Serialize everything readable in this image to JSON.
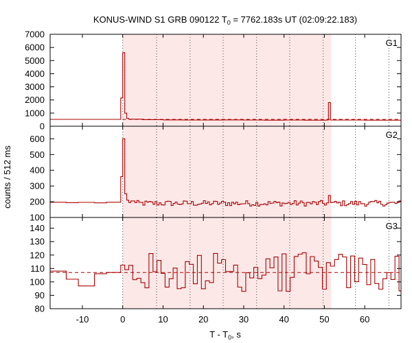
{
  "chart_data": {
    "type": "step-histogram",
    "title": "KONUS-WIND S1 GRB 090122 T",
    "title_sub": "0",
    "title_rest": " = 7762.183s UT (02:09:22.183)",
    "xlabel_main": "T - T",
    "xlabel_sub": "0",
    "xlabel_rest": ", s",
    "ylabel": "counts / 512 ms",
    "xlim": [
      -18,
      69
    ],
    "x_ticks": [
      -10,
      0,
      10,
      20,
      30,
      40,
      50,
      60
    ],
    "x_tick_labels": [
      "-10",
      "0",
      "10",
      "20",
      "30",
      "40",
      "50",
      "60"
    ],
    "shaded_interval": [
      0,
      51.7
    ],
    "shade_color": "#fde8e8",
    "line_color": "#aa0000",
    "dashed_color": "#aa0000",
    "dotted_lines_x": [
      0,
      8.4,
      16.7,
      24.9,
      33.2,
      41.4,
      49.7,
      57.7,
      66.0
    ],
    "panels": [
      {
        "name": "G1",
        "ylim": [
          0,
          7000
        ],
        "y_ticks": [
          0,
          1000,
          2000,
          3000,
          4000,
          5000,
          6000,
          7000
        ],
        "y_tick_labels": [
          "0",
          "1000",
          "2000",
          "3000",
          "4000",
          "5000",
          "6000",
          "7000"
        ],
        "background_level": 520,
        "pre_trigger": {
          "x0": -18,
          "x1": -0.5,
          "value": 520
        },
        "bins": [
          {
            "x": -0.5,
            "v": 2150
          },
          {
            "x": 0.0,
            "v": 5600
          },
          {
            "x": 0.5,
            "v": 1000
          },
          {
            "x": 1.0,
            "v": 600
          },
          {
            "x": 1.5,
            "v": 540
          },
          {
            "x": 5.0,
            "v": 500
          },
          {
            "x": 10.0,
            "v": 480
          },
          {
            "x": 15.0,
            "v": 470
          },
          {
            "x": 20.0,
            "v": 475
          },
          {
            "x": 25.0,
            "v": 480
          },
          {
            "x": 30.0,
            "v": 470
          },
          {
            "x": 35.0,
            "v": 460
          },
          {
            "x": 40.0,
            "v": 470
          },
          {
            "x": 45.0,
            "v": 460
          },
          {
            "x": 50.5,
            "v": 470
          },
          {
            "x": 51.0,
            "v": 1800
          },
          {
            "x": 51.5,
            "v": 470
          },
          {
            "x": 55.0,
            "v": 470
          },
          {
            "x": 60.0,
            "v": 460
          },
          {
            "x": 65.0,
            "v": 460
          }
        ]
      },
      {
        "name": "G2",
        "ylim": [
          100,
          680
        ],
        "y_ticks": [
          100,
          200,
          300,
          400,
          500,
          600
        ],
        "y_tick_labels": [
          "100",
          "200",
          "300",
          "400",
          "500",
          "600"
        ],
        "pre_trigger_series": [
          {
            "x0": -18,
            "x1": -14,
            "v": 197
          },
          {
            "x0": -14,
            "x1": -11,
            "v": 194
          },
          {
            "x0": -11,
            "x1": -7,
            "v": 196
          },
          {
            "x0": -7,
            "x1": -4,
            "v": 193
          },
          {
            "x0": -4,
            "x1": -0.5,
            "v": 197
          }
        ],
        "bins": [
          {
            "x": -0.5,
            "v": 360
          },
          {
            "x": 0.0,
            "v": 600
          },
          {
            "x": 0.5,
            "v": 250
          },
          {
            "x": 1.0,
            "v": 210
          },
          {
            "x": 1.5,
            "v": 195
          },
          {
            "x": 51.0,
            "v": 240
          },
          {
            "x": 51.5,
            "v": 195
          }
        ],
        "noise_mean": 190,
        "noise_amp": 18,
        "noise_to": 69
      },
      {
        "name": "G3",
        "ylim": [
          80,
          148
        ],
        "y_ticks": [
          80,
          90,
          100,
          110,
          120,
          130,
          140
        ],
        "y_tick_labels": [
          "80",
          "90",
          "100",
          "110",
          "120",
          "130",
          "140"
        ],
        "dashed_level": 107,
        "pre_trigger_series": [
          {
            "x0": -18,
            "x1": -14,
            "v": 108
          },
          {
            "x0": -14,
            "x1": -11,
            "v": 102
          },
          {
            "x0": -11,
            "x1": -7,
            "v": 97
          },
          {
            "x0": -7,
            "x1": -4,
            "v": 106
          },
          {
            "x0": -4,
            "x1": -0.5,
            "v": 107
          }
        ],
        "noise_mean": 107,
        "noise_amp": 15,
        "noise_to": 69
      }
    ]
  }
}
